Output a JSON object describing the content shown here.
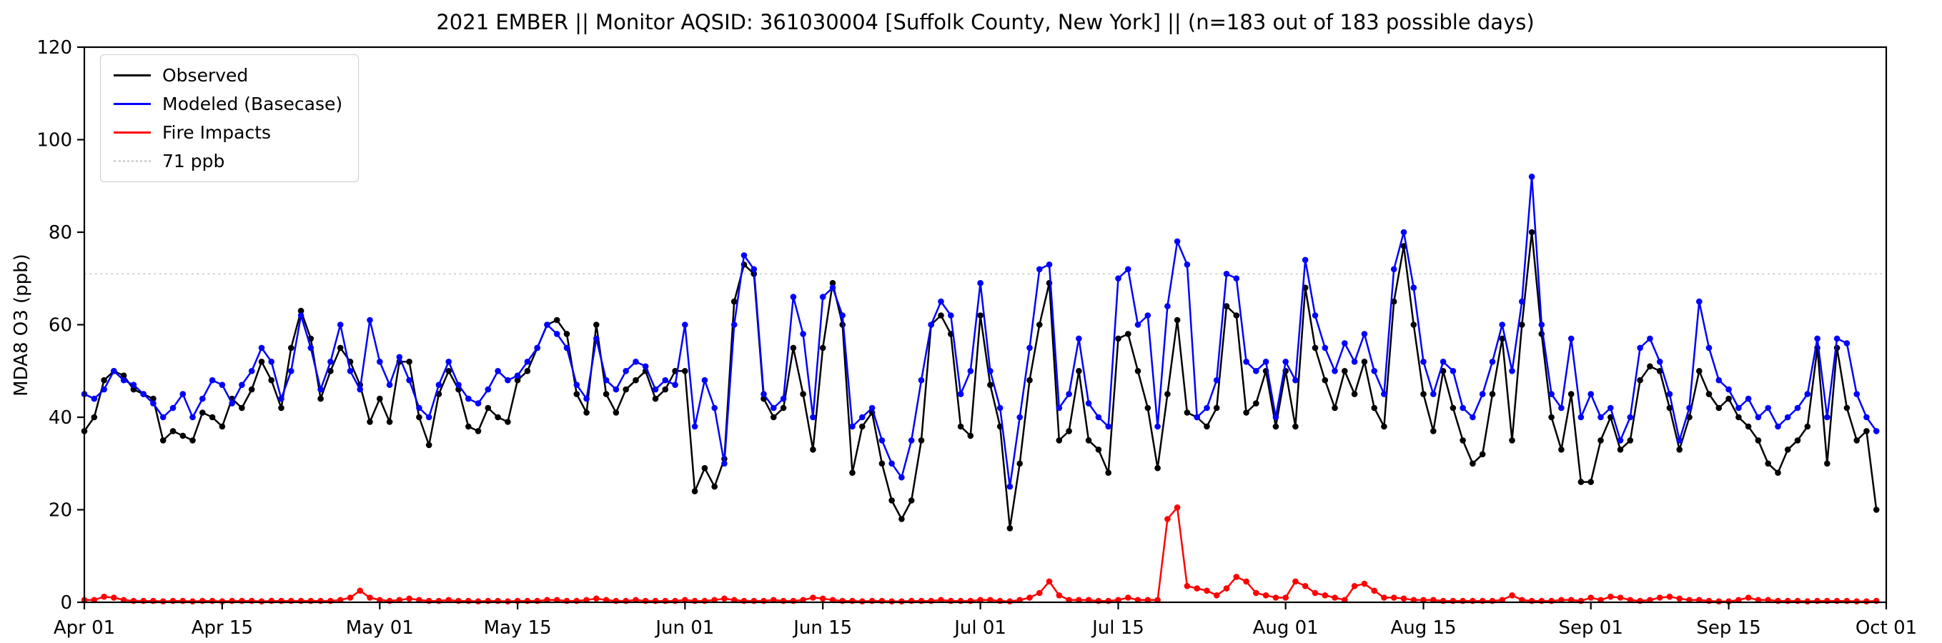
{
  "chart_data": {
    "type": "line",
    "title": "2021 EMBER || Monitor AQSID: 361030004 [Suffolk County, New York] || (n=183 out of 183 possible days)",
    "xlabel": "",
    "ylabel": "MDA8 O3 (ppb)",
    "ylim": [
      0,
      120
    ],
    "xlim": [
      0,
      183
    ],
    "grid": false,
    "legend_position": "upper left",
    "yticks": [
      0,
      20,
      40,
      60,
      80,
      100,
      120
    ],
    "xticks": [
      {
        "day": 0,
        "label": "Apr 01"
      },
      {
        "day": 14,
        "label": "Apr 15"
      },
      {
        "day": 30,
        "label": "May 01"
      },
      {
        "day": 44,
        "label": "May 15"
      },
      {
        "day": 61,
        "label": "Jun 01"
      },
      {
        "day": 75,
        "label": "Jun 15"
      },
      {
        "day": 91,
        "label": "Jul 01"
      },
      {
        "day": 105,
        "label": "Jul 15"
      },
      {
        "day": 122,
        "label": "Aug 01"
      },
      {
        "day": 136,
        "label": "Aug 15"
      },
      {
        "day": 153,
        "label": "Sep 01"
      },
      {
        "day": 167,
        "label": "Sep 15"
      },
      {
        "day": 183,
        "label": "Oct 01"
      }
    ],
    "reference_line": {
      "label": "71 ppb",
      "value": 71,
      "color": "#d3d3d3",
      "style": "dotted"
    },
    "series": [
      {
        "id": "observed",
        "name": "Observed",
        "color": "#000000",
        "values": [
          37,
          40,
          48,
          50,
          49,
          46,
          45,
          44,
          35,
          37,
          36,
          35,
          41,
          40,
          38,
          44,
          42,
          46,
          52,
          48,
          42,
          55,
          63,
          57,
          44,
          50,
          55,
          52,
          47,
          39,
          44,
          39,
          52,
          52,
          40,
          34,
          45,
          50,
          46,
          38,
          37,
          42,
          40,
          39,
          48,
          50,
          55,
          60,
          61,
          58,
          45,
          41,
          60,
          45,
          41,
          46,
          48,
          50,
          44,
          46,
          50,
          50,
          24,
          29,
          25,
          31,
          65,
          73,
          71,
          44,
          40,
          42,
          55,
          45,
          33,
          55,
          69,
          60,
          28,
          38,
          41,
          30,
          22,
          18,
          22,
          35,
          60,
          62,
          58,
          38,
          36,
          62,
          47,
          38,
          16,
          30,
          48,
          60,
          69,
          35,
          37,
          50,
          35,
          33,
          28,
          57,
          58,
          50,
          42,
          29,
          45,
          61,
          41,
          40,
          38,
          42,
          64,
          62,
          41,
          43,
          50,
          38,
          50,
          38,
          68,
          55,
          48,
          42,
          50,
          45,
          52,
          42,
          38,
          65,
          77,
          60,
          45,
          37,
          50,
          42,
          35,
          30,
          32,
          45,
          57,
          35,
          60,
          80,
          58,
          40,
          33,
          45,
          26,
          26,
          35,
          40,
          33,
          35,
          48,
          51,
          50,
          42,
          33,
          40,
          50,
          45,
          42,
          44,
          40,
          38,
          35,
          30,
          28,
          33,
          35,
          38,
          55,
          30,
          55,
          42,
          35,
          37,
          20
        ]
      },
      {
        "id": "modeled-basecase",
        "name": "Modeled (Basecase)",
        "color": "#0000ff",
        "values": [
          45,
          44,
          46,
          50,
          48,
          47,
          45,
          43,
          40,
          42,
          45,
          40,
          44,
          48,
          47,
          43,
          47,
          50,
          55,
          52,
          44,
          50,
          62,
          55,
          46,
          52,
          60,
          50,
          46,
          61,
          52,
          47,
          53,
          48,
          42,
          40,
          47,
          52,
          47,
          44,
          43,
          46,
          50,
          48,
          49,
          52,
          55,
          60,
          58,
          55,
          47,
          44,
          57,
          48,
          46,
          50,
          52,
          51,
          46,
          48,
          47,
          60,
          38,
          48,
          42,
          30,
          60,
          75,
          72,
          45,
          42,
          44,
          66,
          58,
          40,
          66,
          68,
          62,
          38,
          40,
          42,
          35,
          30,
          27,
          35,
          48,
          60,
          65,
          62,
          45,
          50,
          69,
          50,
          42,
          25,
          40,
          55,
          72,
          73,
          42,
          45,
          57,
          43,
          40,
          38,
          70,
          72,
          60,
          62,
          38,
          64,
          78,
          73,
          40,
          42,
          48,
          71,
          70,
          52,
          50,
          52,
          40,
          52,
          48,
          74,
          62,
          55,
          50,
          56,
          52,
          58,
          50,
          45,
          72,
          80,
          68,
          52,
          45,
          52,
          50,
          42,
          40,
          45,
          52,
          60,
          50,
          65,
          92,
          60,
          45,
          42,
          57,
          40,
          45,
          40,
          42,
          35,
          40,
          55,
          57,
          52,
          45,
          35,
          42,
          65,
          55,
          48,
          46,
          42,
          44,
          40,
          42,
          38,
          40,
          42,
          45,
          57,
          40,
          57,
          56,
          45,
          40,
          37
        ]
      },
      {
        "id": "fire-impacts",
        "name": "Fire Impacts",
        "color": "#ff0000",
        "values": [
          0.5,
          0.5,
          1.2,
          1.0,
          0.5,
          0.3,
          0.3,
          0.3,
          0.2,
          0.3,
          0.3,
          0.2,
          0.3,
          0.3,
          0.2,
          0.3,
          0.3,
          0.3,
          0.2,
          0.3,
          0.3,
          0.3,
          0.3,
          0.3,
          0.3,
          0.3,
          0.5,
          1.0,
          2.5,
          1.0,
          0.5,
          0.3,
          0.5,
          0.8,
          0.5,
          0.3,
          0.3,
          0.5,
          0.3,
          0.3,
          0.2,
          0.3,
          0.3,
          0.2,
          0.3,
          0.3,
          0.3,
          0.5,
          0.5,
          0.3,
          0.3,
          0.5,
          0.8,
          0.5,
          0.3,
          0.3,
          0.5,
          0.3,
          0.3,
          0.3,
          0.3,
          0.5,
          0.3,
          0.3,
          0.5,
          0.8,
          0.5,
          0.3,
          0.3,
          0.3,
          0.5,
          0.3,
          0.3,
          0.5,
          1.0,
          0.8,
          0.5,
          0.3,
          0.3,
          0.2,
          0.3,
          0.3,
          0.2,
          0.2,
          0.3,
          0.3,
          0.3,
          0.5,
          0.3,
          0.3,
          0.3,
          0.5,
          0.5,
          0.3,
          0.2,
          0.5,
          1.0,
          2.0,
          4.5,
          1.5,
          0.5,
          0.5,
          0.5,
          0.3,
          0.3,
          0.5,
          1.0,
          0.5,
          0.5,
          0.5,
          18.0,
          20.5,
          3.5,
          3.0,
          2.5,
          1.5,
          3.0,
          5.5,
          4.5,
          2.0,
          1.5,
          1.0,
          1.0,
          4.5,
          3.5,
          2.0,
          1.5,
          1.0,
          0.5,
          3.5,
          4.0,
          2.5,
          1.0,
          1.0,
          0.8,
          0.5,
          0.5,
          0.5,
          0.3,
          0.3,
          0.3,
          0.3,
          0.3,
          0.3,
          0.5,
          1.5,
          0.5,
          0.3,
          0.3,
          0.3,
          0.5,
          0.5,
          0.3,
          1.0,
          0.5,
          1.2,
          1.0,
          0.5,
          0.3,
          0.5,
          1.0,
          1.2,
          0.8,
          0.5,
          0.5,
          0.3,
          0.2,
          0.2,
          0.5,
          1.0,
          0.5,
          0.5,
          0.3,
          0.3,
          0.3,
          0.2,
          0.3,
          0.3,
          0.3,
          0.3,
          0.2,
          0.2,
          0.3
        ]
      }
    ]
  }
}
